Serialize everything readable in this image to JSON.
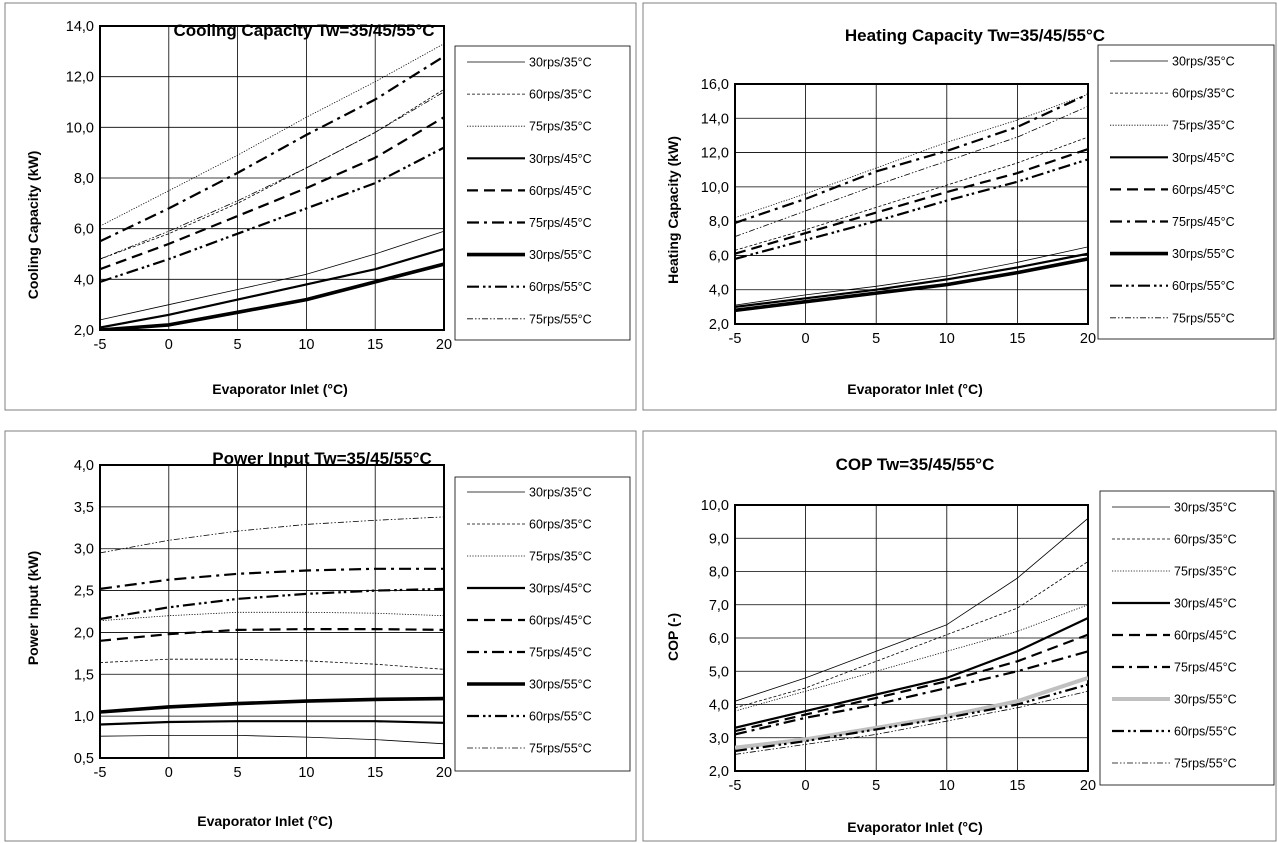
{
  "chart_data": [
    {
      "type": "line",
      "title": "Cooling Capacity Tw=35/45/55°C",
      "xlabel": "Evaporator Inlet (°C)",
      "ylabel": "Cooling Capacity (kW)",
      "xlim": [
        -5,
        20
      ],
      "ylim": [
        2,
        14
      ],
      "x_ticks": [
        "-5",
        "0",
        "5",
        "10",
        "15",
        "20"
      ],
      "y_ticks": [
        "2,0",
        "4,0",
        "6,0",
        "8,0",
        "10,0",
        "12,0",
        "14,0"
      ],
      "grid": true,
      "legend_position": "right",
      "x": [
        -5,
        0,
        5,
        10,
        15,
        20
      ],
      "series": [
        {
          "name": "30rps/35°C",
          "values": [
            2.4,
            3.0,
            3.6,
            4.2,
            5.0,
            5.9
          ]
        },
        {
          "name": "60rps/35°C",
          "values": [
            4.8,
            5.8,
            7.0,
            8.4,
            9.8,
            11.5
          ]
        },
        {
          "name": "75rps/35°C",
          "values": [
            6.1,
            7.5,
            8.9,
            10.4,
            11.8,
            13.3
          ]
        },
        {
          "name": "30rps/45°C",
          "values": [
            2.1,
            2.6,
            3.2,
            3.8,
            4.4,
            5.2
          ]
        },
        {
          "name": "60rps/45°C",
          "values": [
            4.4,
            5.4,
            6.5,
            7.6,
            8.8,
            10.4
          ]
        },
        {
          "name": "75rps/45°C",
          "values": [
            5.5,
            6.8,
            8.2,
            9.7,
            11.1,
            12.8
          ]
        },
        {
          "name": "30rps/55°C",
          "values": [
            2.0,
            2.2,
            2.7,
            3.2,
            3.9,
            4.6
          ]
        },
        {
          "name": "60rps/55°C",
          "values": [
            3.9,
            4.8,
            5.8,
            6.8,
            7.8,
            9.2
          ]
        },
        {
          "name": "75rps/55°C",
          "values": [
            4.8,
            5.9,
            7.1,
            8.4,
            9.8,
            11.4
          ]
        }
      ]
    },
    {
      "type": "line",
      "title": "Heating Capacity Tw=35/45/55°C",
      "xlabel": "Evaporator Inlet (°C)",
      "ylabel": "Heating Capacity (kW)",
      "xlim": [
        -5,
        20
      ],
      "ylim": [
        2,
        16
      ],
      "x_ticks": [
        "-5",
        "0",
        "5",
        "10",
        "15",
        "20"
      ],
      "y_ticks": [
        "2,0",
        "4,0",
        "6,0",
        "8,0",
        "10,0",
        "12,0",
        "14,0",
        "16,0"
      ],
      "grid": true,
      "legend_position": "right",
      "x": [
        -5,
        0,
        5,
        10,
        15,
        20
      ],
      "series": [
        {
          "name": "30rps/35°C",
          "values": [
            3.1,
            3.7,
            4.2,
            4.8,
            5.6,
            6.5
          ]
        },
        {
          "name": "60rps/35°C",
          "values": [
            6.3,
            7.5,
            8.8,
            10.1,
            11.4,
            12.9
          ]
        },
        {
          "name": "75rps/35°C",
          "values": [
            8.2,
            9.6,
            11.1,
            12.6,
            13.9,
            15.4
          ]
        },
        {
          "name": "30rps/45°C",
          "values": [
            3.0,
            3.5,
            4.0,
            4.6,
            5.3,
            6.1
          ]
        },
        {
          "name": "60rps/45°C",
          "values": [
            6.1,
            7.3,
            8.5,
            9.7,
            10.8,
            12.2
          ]
        },
        {
          "name": "75rps/45°C",
          "values": [
            7.9,
            9.3,
            10.9,
            12.1,
            13.5,
            15.4
          ]
        },
        {
          "name": "30rps/55°C",
          "values": [
            2.8,
            3.3,
            3.8,
            4.3,
            5.0,
            5.8
          ]
        },
        {
          "name": "60rps/55°C",
          "values": [
            5.8,
            6.9,
            8.0,
            9.2,
            10.3,
            11.6
          ]
        },
        {
          "name": "75rps/55°C",
          "values": [
            7.1,
            8.6,
            10.1,
            11.5,
            12.9,
            14.7
          ]
        }
      ]
    },
    {
      "type": "line",
      "title": "Power Input Tw=35/45/55°C",
      "xlabel": "Evaporator Inlet (°C)",
      "ylabel": "Power Input (kW)",
      "xlim": [
        -5,
        20
      ],
      "ylim": [
        0.5,
        4
      ],
      "x_ticks": [
        "-5",
        "0",
        "5",
        "10",
        "15",
        "20"
      ],
      "y_ticks": [
        "0,5",
        "1,0",
        "1,5",
        "2,0",
        "2,5",
        "3,0",
        "3,5",
        "4,0"
      ],
      "grid": true,
      "legend_position": "right",
      "x": [
        -5,
        0,
        5,
        10,
        15,
        20
      ],
      "series": [
        {
          "name": "30rps/35°C",
          "values": [
            0.76,
            0.77,
            0.77,
            0.75,
            0.72,
            0.67
          ]
        },
        {
          "name": "60rps/35°C",
          "values": [
            1.64,
            1.68,
            1.68,
            1.66,
            1.62,
            1.56
          ]
        },
        {
          "name": "75rps/35°C",
          "values": [
            2.14,
            2.2,
            2.24,
            2.24,
            2.23,
            2.2
          ]
        },
        {
          "name": "30rps/45°C",
          "values": [
            0.9,
            0.93,
            0.94,
            0.94,
            0.94,
            0.92
          ]
        },
        {
          "name": "60rps/45°C",
          "values": [
            1.9,
            1.98,
            2.03,
            2.04,
            2.04,
            2.03
          ]
        },
        {
          "name": "75rps/45°C",
          "values": [
            2.52,
            2.63,
            2.7,
            2.74,
            2.76,
            2.76
          ]
        },
        {
          "name": "30rps/55°C",
          "values": [
            1.05,
            1.11,
            1.15,
            1.18,
            1.2,
            1.21
          ]
        },
        {
          "name": "60rps/55°C",
          "values": [
            2.16,
            2.3,
            2.4,
            2.46,
            2.5,
            2.52
          ]
        },
        {
          "name": "75rps/55°C",
          "values": [
            2.95,
            3.1,
            3.21,
            3.29,
            3.34,
            3.38
          ]
        }
      ]
    },
    {
      "type": "line",
      "title": "COP Tw=35/45/55°C",
      "xlabel": "Evaporator Inlet (°C)",
      "ylabel": "COP (-)",
      "xlim": [
        -5,
        20
      ],
      "ylim": [
        2,
        10
      ],
      "x_ticks": [
        "-5",
        "0",
        "5",
        "10",
        "15",
        "20"
      ],
      "y_ticks": [
        "2,0",
        "3,0",
        "4,0",
        "5,0",
        "6,0",
        "7,0",
        "8,0",
        "9,0",
        "10,0"
      ],
      "grid": true,
      "legend_position": "right",
      "x": [
        -5,
        0,
        5,
        10,
        15,
        20
      ],
      "series": [
        {
          "name": "30rps/35°C",
          "values": [
            4.1,
            4.8,
            5.6,
            6.4,
            7.8,
            9.6
          ]
        },
        {
          "name": "60rps/35°C",
          "values": [
            3.9,
            4.5,
            5.3,
            6.1,
            6.9,
            8.3
          ]
        },
        {
          "name": "75rps/35°C",
          "values": [
            3.8,
            4.4,
            5.0,
            5.6,
            6.2,
            7.0
          ]
        },
        {
          "name": "30rps/45°C",
          "values": [
            3.3,
            3.8,
            4.3,
            4.8,
            5.6,
            6.6
          ]
        },
        {
          "name": "60rps/45°C",
          "values": [
            3.2,
            3.7,
            4.2,
            4.7,
            5.3,
            6.1
          ]
        },
        {
          "name": "75rps/45°C",
          "values": [
            3.1,
            3.6,
            4.0,
            4.5,
            5.0,
            5.6
          ]
        },
        {
          "name": "30rps/55°C",
          "values": [
            2.7,
            2.95,
            3.3,
            3.65,
            4.1,
            4.8
          ]
        },
        {
          "name": "60rps/55°C",
          "values": [
            2.6,
            2.9,
            3.25,
            3.6,
            4.0,
            4.6
          ]
        },
        {
          "name": "75rps/55°C",
          "values": [
            2.5,
            2.8,
            3.1,
            3.5,
            3.9,
            4.4
          ]
        }
      ]
    }
  ],
  "series_styles": [
    {
      "color": "#000000",
      "dash": "",
      "width": 0.8
    },
    {
      "color": "#000000",
      "dash": "3,2",
      "width": 0.8
    },
    {
      "color": "#000000",
      "dash": "1.2,1.5",
      "width": 0.8
    },
    {
      "color": "#000000",
      "dash": "",
      "width": 2.2
    },
    {
      "color": "#000000",
      "dash": "11,6",
      "width": 2.2
    },
    {
      "color": "#000000",
      "dash": "12,5,3,5",
      "width": 2.2
    },
    {
      "color": "#000000",
      "dash": "",
      "width": 3.6
    },
    {
      "color": "#000000",
      "dash": "12,4,2.5,3,2.5,4",
      "width": 2.2
    },
    {
      "color": "#000000",
      "dash": "6,2,1.5,2,1.5,2",
      "width": 0.8
    }
  ],
  "cop_highlight": {
    "series_index": 6,
    "color": "#c0c0c0",
    "width": 4
  }
}
